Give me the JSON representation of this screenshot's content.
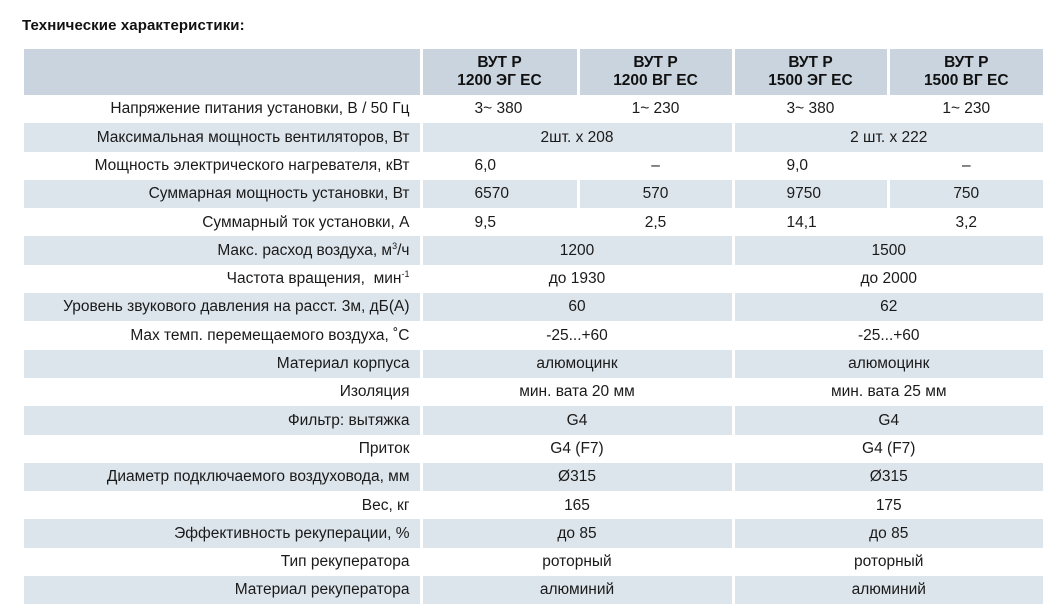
{
  "title": "Технические характеристики:",
  "headers": [
    {
      "line1": "ВУТ Р",
      "line2": "1200 ЭГ ЕС"
    },
    {
      "line1": "ВУТ Р",
      "line2": "1200 ВГ ЕС"
    },
    {
      "line1": "ВУТ Р",
      "line2": "1500 ЭГ ЕС"
    },
    {
      "line1": "ВУТ Р",
      "line2": "1500 ВГ ЕС"
    }
  ],
  "rows": {
    "voltage": {
      "label": "Напряжение питания установки, В / 50 Гц",
      "v1": "3~ 380",
      "v2": "1~ 230",
      "v3": "3~ 380",
      "v4": "1~ 230"
    },
    "fan_power": {
      "label": "Максимальная мощность вентиляторов, Вт",
      "v12": "2шт. х 208",
      "v34": "2 шт. х 222"
    },
    "heater_power": {
      "label": "Мощность электрического нагревателя, кВт",
      "v1": "6,0",
      "v2": "–",
      "v3": "9,0",
      "v4": "–"
    },
    "total_power": {
      "label": "Суммарная мощность установки, Вт",
      "v1": "6570",
      "v2": "570",
      "v3": "9750",
      "v4": "750"
    },
    "total_current": {
      "label": "Суммарный ток установки, А",
      "v1": "9,5",
      "v2": "2,5",
      "v3": "14,1",
      "v4": "3,2"
    },
    "airflow": {
      "label_main": "Макс. расход воздуха, м",
      "label_sup": "3",
      "label_tail": "/ч",
      "v12": "1200",
      "v34": "1500"
    },
    "rpm": {
      "label_main": "Частота вращения,  мин",
      "label_sup": "-1",
      "v12": "до 1930",
      "v34": "до 2000"
    },
    "noise": {
      "label": "Уровень звукового давления на расст. 3м, дБ(А)",
      "v12": "60",
      "v34": "62"
    },
    "max_temp": {
      "label": "Max темп. перемещаемого воздуха, ˚С",
      "v12": "-25...+60",
      "v34": "-25...+60"
    },
    "housing": {
      "label": "Материал корпуса",
      "v12": "алюмоцинк",
      "v34": "алюмоцинк"
    },
    "insulation": {
      "label": "Изоляция",
      "v12": "мин. вата 20 мм",
      "v34": "мин. вата 25 мм"
    },
    "filter_exhaust": {
      "label": "Фильтр: вытяжка",
      "v12": "G4",
      "v34": "G4"
    },
    "filter_supply": {
      "label": "Приток",
      "v12": "G4 (F7)",
      "v34": "G4 (F7)"
    },
    "duct_diameter": {
      "label": "Диаметр подключаемого воздуховода, мм",
      "v12": "Ø315",
      "v34": "Ø315"
    },
    "weight": {
      "label": "Вес, кг",
      "v12": "165",
      "v34": "175"
    },
    "efficiency": {
      "label": "Эффективность рекуперации, %",
      "v12": "до 85",
      "v34": "до 85"
    },
    "recuperator_type": {
      "label": "Тип рекуператора",
      "v12": "роторный",
      "v34": "роторный"
    },
    "recuperator_material": {
      "label": "Материал рекуператора",
      "v12": "алюминий",
      "v34": "алюминий"
    }
  },
  "colors": {
    "header_bg": "#c9d4df",
    "shade_bg": "#dde5ec"
  }
}
